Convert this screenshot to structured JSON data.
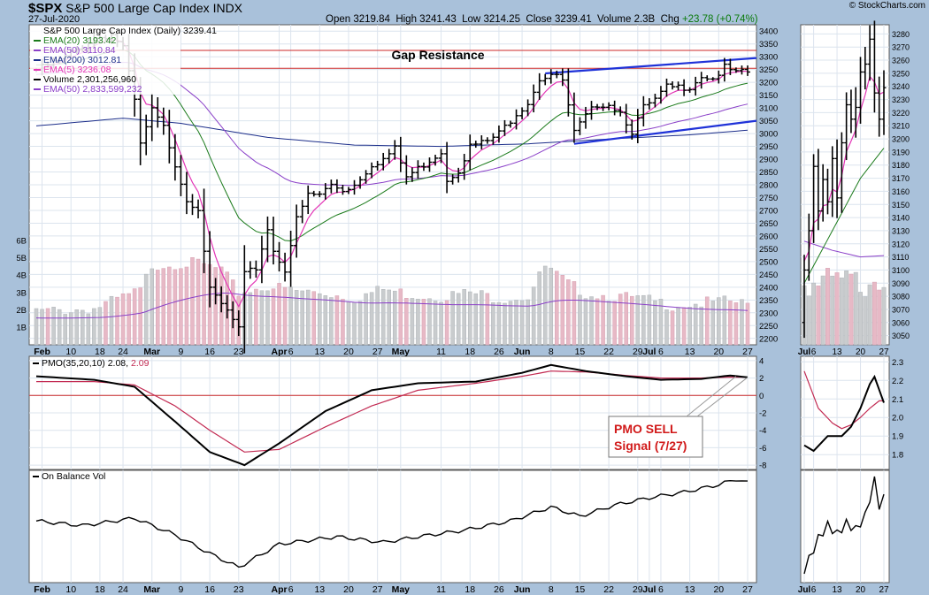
{
  "header": {
    "symbol": "$SPX",
    "name": "S&P 500 Large Cap Index",
    "exchange": "INDX",
    "date": "27-Jul-2020",
    "open_label": "Open",
    "open": "3219.84",
    "high_label": "High",
    "high": "3241.43",
    "low_label": "Low",
    "low": "3214.25",
    "close_label": "Close",
    "close": "3239.41",
    "volume_label": "Volume",
    "volume": "2.3B",
    "chg_label": "Chg",
    "chg": "+23.78 (+0.74%)",
    "credit": "© StockCharts.com"
  },
  "colors": {
    "bg": "#a9c1da",
    "panel": "#ffffff",
    "grid": "#dce4ee",
    "ema20": "#1a7a1a",
    "ema50": "#8a3fc8",
    "ema200": "#1c2e8a",
    "ema5": "#e335b6",
    "vol_up": "#c9ccce",
    "vol_down": "#e7b9c6",
    "vol_ema": "#8a3fc8",
    "resistance": "#cc2a2a",
    "trend": "#1f32d8",
    "pmo": "#000000",
    "pmo_signal": "#c22a52",
    "callout": "#d11a1a"
  },
  "legend": [
    {
      "key": "title",
      "text": "S&P 500 Large Cap Index (Daily) 3239.41",
      "color": "#000000"
    },
    {
      "key": "ema20",
      "text": "EMA(20) 3193.42",
      "color": "#1a7a1a"
    },
    {
      "key": "ema50",
      "text": "EMA(50) 3110.84",
      "color": "#8a3fc8"
    },
    {
      "key": "ema200",
      "text": "EMA(200) 3012.81",
      "color": "#1c2e8a"
    },
    {
      "key": "ema5",
      "text": "EMA(5) 3236.08",
      "color": "#e335b6"
    },
    {
      "key": "volume",
      "text": "Volume 2,301,256,960",
      "color": "#000000"
    },
    {
      "key": "vol_ema",
      "text": "EMA(50) 2,833,599,232",
      "color": "#8a3fc8"
    }
  ],
  "annotations": {
    "gap_resistance": "Gap Resistance",
    "pmo_sell_line1": "PMO SELL",
    "pmo_sell_line2": "Signal (7/27)"
  },
  "panel_labels": {
    "pmo": "PMO(35,20,10) 2.08, 2.09",
    "pmo_value": "2.08",
    "pmo_signal_value": "2.09",
    "obv": "On Balance Vol"
  },
  "chart_data": [
    {
      "id": "price",
      "type": "candlestick",
      "title": "S&P 500 Large Cap Index (Daily)",
      "ylim": [
        2175,
        3425
      ],
      "yticks": [
        2200,
        2250,
        2300,
        2350,
        2400,
        2450,
        2500,
        2550,
        2600,
        2650,
        2700,
        2750,
        2800,
        2850,
        2900,
        2950,
        3000,
        3050,
        3100,
        3150,
        3200,
        3250,
        3300,
        3350,
        3400
      ],
      "volume_ticks": [
        "1B",
        "2B",
        "3B",
        "4B",
        "5B",
        "6B"
      ],
      "volume_max_b": 7.0,
      "x_labels": [
        {
          "label": "Feb",
          "i": 1
        },
        {
          "label": "10",
          "i": 6
        },
        {
          "label": "18",
          "i": 11
        },
        {
          "label": "24",
          "i": 15
        },
        {
          "label": "Mar",
          "i": 20
        },
        {
          "label": "9",
          "i": 25
        },
        {
          "label": "16",
          "i": 30
        },
        {
          "label": "23",
          "i": 35
        },
        {
          "label": "Apr",
          "i": 42
        },
        {
          "label": "6",
          "i": 44
        },
        {
          "label": "13",
          "i": 49
        },
        {
          "label": "20",
          "i": 54
        },
        {
          "label": "27",
          "i": 59
        },
        {
          "label": "May",
          "i": 63
        },
        {
          "label": "11",
          "i": 70
        },
        {
          "label": "18",
          "i": 75
        },
        {
          "label": "26",
          "i": 80
        },
        {
          "label": "Jun",
          "i": 84
        },
        {
          "label": "8",
          "i": 89
        },
        {
          "label": "15",
          "i": 94
        },
        {
          "label": "22",
          "i": 99
        },
        {
          "label": "29",
          "i": 104
        },
        {
          "label": "Jul",
          "i": 106
        },
        {
          "label": "6",
          "i": 108
        },
        {
          "label": "13",
          "i": 113
        },
        {
          "label": "20",
          "i": 118
        },
        {
          "label": "27",
          "i": 123
        }
      ],
      "close_anchors": [
        [
          0,
          3248
        ],
        [
          5,
          3297
        ],
        [
          10,
          3373
        ],
        [
          13,
          3386
        ],
        [
          15,
          3337
        ],
        [
          17,
          3128
        ],
        [
          18,
          2954
        ],
        [
          20,
          3090
        ],
        [
          22,
          3023
        ],
        [
          24,
          2882
        ],
        [
          26,
          2741
        ],
        [
          28,
          2711
        ],
        [
          30,
          2386
        ],
        [
          33,
          2305
        ],
        [
          35,
          2237
        ],
        [
          36,
          2447
        ],
        [
          38,
          2475
        ],
        [
          40,
          2630
        ],
        [
          41,
          2541
        ],
        [
          43,
          2470
        ],
        [
          45,
          2664
        ],
        [
          47,
          2760
        ],
        [
          49,
          2762
        ],
        [
          51,
          2800
        ],
        [
          53,
          2780
        ],
        [
          55,
          2800
        ],
        [
          58,
          2880
        ],
        [
          60,
          2900
        ],
        [
          62,
          2940
        ],
        [
          64,
          2830
        ],
        [
          67,
          2880
        ],
        [
          70,
          2930
        ],
        [
          71,
          2820
        ],
        [
          73,
          2860
        ],
        [
          75,
          2950
        ],
        [
          78,
          2970
        ],
        [
          80,
          3000
        ],
        [
          83,
          3080
        ],
        [
          85,
          3122
        ],
        [
          87,
          3215
        ],
        [
          89,
          3232
        ],
        [
          91,
          3207
        ],
        [
          93,
          3002
        ],
        [
          95,
          3067
        ],
        [
          97,
          3115
        ],
        [
          99,
          3117
        ],
        [
          101,
          3084
        ],
        [
          103,
          3009
        ],
        [
          105,
          3100
        ],
        [
          107,
          3130
        ],
        [
          109,
          3180
        ],
        [
          111,
          3180
        ],
        [
          113,
          3185
        ],
        [
          115,
          3226
        ],
        [
          117,
          3215
        ],
        [
          119,
          3257
        ],
        [
          121,
          3235
        ],
        [
          123,
          3239
        ]
      ],
      "volume_anchors": [
        [
          0,
          1.9
        ],
        [
          10,
          2.1
        ],
        [
          18,
          3.1
        ],
        [
          20,
          4.6
        ],
        [
          24,
          4.7
        ],
        [
          28,
          4.7
        ],
        [
          32,
          4.3
        ],
        [
          35,
          3.0
        ],
        [
          40,
          3.4
        ],
        [
          45,
          3.1
        ],
        [
          50,
          3.0
        ],
        [
          55,
          2.7
        ],
        [
          60,
          3.2
        ],
        [
          65,
          2.9
        ],
        [
          70,
          2.8
        ],
        [
          75,
          3.0
        ],
        [
          80,
          2.7
        ],
        [
          85,
          2.8
        ],
        [
          88,
          4.5
        ],
        [
          92,
          3.5
        ],
        [
          95,
          3.0
        ],
        [
          100,
          2.8
        ],
        [
          105,
          2.6
        ],
        [
          110,
          2.3
        ],
        [
          115,
          2.4
        ],
        [
          120,
          2.5
        ],
        [
          123,
          2.3
        ]
      ],
      "ema200_anchors": [
        [
          0,
          3030
        ],
        [
          15,
          3060
        ],
        [
          25,
          3040
        ],
        [
          40,
          2985
        ],
        [
          55,
          2955
        ],
        [
          70,
          2950
        ],
        [
          85,
          2960
        ],
        [
          100,
          2980
        ],
        [
          113,
          2995
        ],
        [
          123,
          3013
        ]
      ],
      "resistance_levels": [
        3325,
        3255
      ],
      "trend_lines": [
        {
          "from": [
            88,
            3235
          ],
          "to": [
            123,
            3295
          ]
        },
        {
          "from": [
            93,
            2960
          ],
          "to": [
            123,
            3050
          ]
        }
      ]
    },
    {
      "id": "pmo",
      "type": "line",
      "title": "PMO(35,20,10)",
      "ylim": [
        -8.5,
        4.5
      ],
      "yticks": [
        -8,
        -6,
        -4,
        -2,
        0,
        2,
        4
      ],
      "zero_line": 0,
      "series": [
        {
          "name": "PMO",
          "anchors": [
            [
              0,
              2.2
            ],
            [
              10,
              1.8
            ],
            [
              17,
              1.0
            ],
            [
              24,
              -3.0
            ],
            [
              30,
              -6.5
            ],
            [
              36,
              -8.0
            ],
            [
              42,
              -5.5
            ],
            [
              50,
              -1.8
            ],
            [
              58,
              0.6
            ],
            [
              66,
              1.4
            ],
            [
              76,
              1.6
            ],
            [
              84,
              2.6
            ],
            [
              89,
              3.5
            ],
            [
              95,
              2.8
            ],
            [
              102,
              2.2
            ],
            [
              108,
              1.8
            ],
            [
              115,
              1.9
            ],
            [
              120,
              2.3
            ],
            [
              123,
              2.08
            ]
          ]
        },
        {
          "name": "Signal",
          "anchors": [
            [
              0,
              1.6
            ],
            [
              10,
              1.6
            ],
            [
              17,
              1.2
            ],
            [
              24,
              -1.2
            ],
            [
              30,
              -4.0
            ],
            [
              36,
              -6.5
            ],
            [
              42,
              -6.2
            ],
            [
              50,
              -3.6
            ],
            [
              58,
              -1.2
            ],
            [
              66,
              0.6
            ],
            [
              76,
              1.4
            ],
            [
              84,
              2.2
            ],
            [
              89,
              2.8
            ],
            [
              95,
              2.7
            ],
            [
              102,
              2.3
            ],
            [
              108,
              2.0
            ],
            [
              115,
              2.0
            ],
            [
              120,
              2.1
            ],
            [
              123,
              2.09
            ]
          ]
        }
      ]
    },
    {
      "id": "obv",
      "type": "line",
      "title": "On Balance Vol",
      "series": [
        {
          "name": "On Balance Vol",
          "anchors": [
            [
              0,
              0.55
            ],
            [
              8,
              0.5
            ],
            [
              17,
              0.58
            ],
            [
              24,
              0.4
            ],
            [
              30,
              0.2
            ],
            [
              35,
              0.05
            ],
            [
              42,
              0.3
            ],
            [
              52,
              0.38
            ],
            [
              60,
              0.32
            ],
            [
              66,
              0.38
            ],
            [
              74,
              0.45
            ],
            [
              82,
              0.55
            ],
            [
              89,
              0.7
            ],
            [
              94,
              0.6
            ],
            [
              100,
              0.72
            ],
            [
              106,
              0.8
            ],
            [
              112,
              0.86
            ],
            [
              118,
              0.94
            ],
            [
              121,
              1.0
            ],
            [
              123,
              0.96
            ]
          ]
        }
      ]
    },
    {
      "id": "price_zoom",
      "type": "candlestick",
      "ylim": [
        3043,
        3287
      ],
      "yticks": [
        3050,
        3060,
        3070,
        3080,
        3090,
        3100,
        3110,
        3120,
        3130,
        3140,
        3150,
        3160,
        3170,
        3180,
        3190,
        3200,
        3210,
        3220,
        3230,
        3240,
        3250,
        3260,
        3270,
        3280
      ],
      "x_labels": [
        {
          "label": "Jul",
          "i": 0
        },
        {
          "label": "6",
          "i": 2
        },
        {
          "label": "13",
          "i": 7
        },
        {
          "label": "20",
          "i": 12
        },
        {
          "label": "27",
          "i": 17
        }
      ],
      "closes": [
        3100,
        3130,
        3179,
        3145,
        3169,
        3152,
        3185,
        3155,
        3197,
        3226,
        3215,
        3224,
        3251,
        3257,
        3276,
        3235,
        3215,
        3239
      ],
      "ema20_anchors": [
        [
          0,
          3090
        ],
        [
          6,
          3130
        ],
        [
          12,
          3170
        ],
        [
          17,
          3193
        ]
      ],
      "ema50_anchors": [
        [
          0,
          3122
        ],
        [
          6,
          3115
        ],
        [
          12,
          3110
        ],
        [
          17,
          3111
        ]
      ]
    },
    {
      "id": "pmo_zoom",
      "type": "line",
      "ylim": [
        1.72,
        2.33
      ],
      "yticks": [
        1.8,
        1.9,
        2.0,
        2.1,
        2.2,
        2.3
      ],
      "series": [
        {
          "name": "PMO",
          "anchors": [
            [
              0,
              1.85
            ],
            [
              2,
              1.82
            ],
            [
              5,
              1.9
            ],
            [
              8,
              1.9
            ],
            [
              10,
              1.95
            ],
            [
              12,
              2.05
            ],
            [
              14,
              2.18
            ],
            [
              15,
              2.22
            ],
            [
              16,
              2.15
            ],
            [
              17,
              2.08
            ]
          ]
        },
        {
          "name": "Signal",
          "anchors": [
            [
              0,
              2.25
            ],
            [
              3,
              2.05
            ],
            [
              6,
              1.97
            ],
            [
              8,
              1.94
            ],
            [
              10,
              1.96
            ],
            [
              12,
              2.0
            ],
            [
              14,
              2.05
            ],
            [
              16,
              2.09
            ],
            [
              17,
              2.09
            ]
          ]
        }
      ]
    },
    {
      "id": "obv_zoom",
      "type": "line",
      "series": [
        {
          "name": "On Balance Vol",
          "anchors": [
            [
              0,
              0.0
            ],
            [
              3,
              0.35
            ],
            [
              5,
              0.5
            ],
            [
              7,
              0.4
            ],
            [
              9,
              0.52
            ],
            [
              11,
              0.45
            ],
            [
              13,
              0.6
            ],
            [
              15,
              1.0
            ],
            [
              16,
              0.72
            ],
            [
              17,
              0.8
            ]
          ]
        }
      ]
    }
  ]
}
